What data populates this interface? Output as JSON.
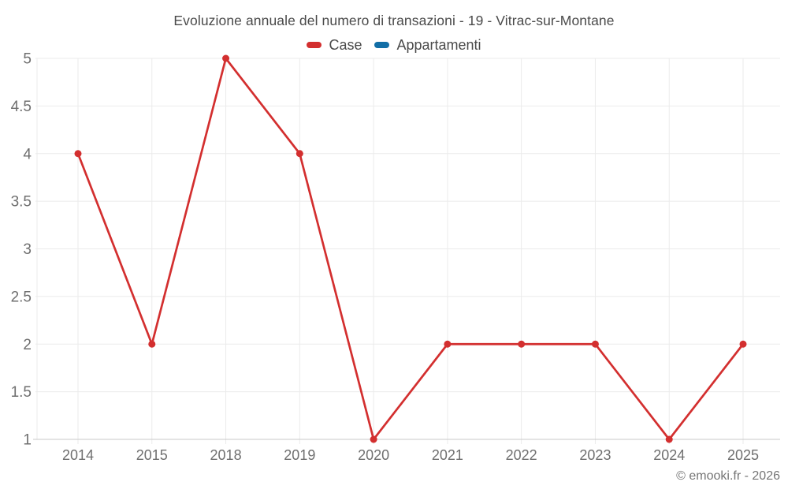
{
  "header": {
    "title": "Evoluzione annuale del numero di transazioni - 19 - Vitrac-sur-Montane"
  },
  "legend": {
    "items": [
      {
        "label": "Case",
        "color": "#d32f2f"
      },
      {
        "label": "Appartamenti",
        "color": "#126ea6"
      }
    ]
  },
  "footer": {
    "copyright": "© emooki.fr - 2026"
  },
  "chart_data": {
    "type": "line",
    "title": "Evoluzione annuale del numero di transazioni - 19 - Vitrac-sur-Montane",
    "categories": [
      "2014",
      "2015",
      "2018",
      "2019",
      "2020",
      "2021",
      "2022",
      "2023",
      "2024",
      "2025"
    ],
    "series": [
      {
        "name": "Case",
        "color": "#d32f2f",
        "marker": "circle",
        "values": [
          4,
          2,
          5,
          4,
          1,
          2,
          2,
          2,
          1,
          2
        ]
      },
      {
        "name": "Appartamenti",
        "color": "#126ea6",
        "marker": "circle",
        "values": []
      }
    ],
    "xlabel": "",
    "ylabel": "",
    "ylim": [
      1,
      5
    ],
    "yticks": [
      5,
      4.5,
      4,
      3.5,
      3,
      2.5,
      2,
      1.5,
      1
    ],
    "grid": true,
    "legend_position": "top"
  },
  "colors": {
    "background": "#ffffff",
    "grid": "#ebebeb",
    "axis": "#c9c9c9",
    "title_text": "#4a4a4a",
    "tick_text": "#6f6f6f",
    "copyright_text": "#757575"
  }
}
